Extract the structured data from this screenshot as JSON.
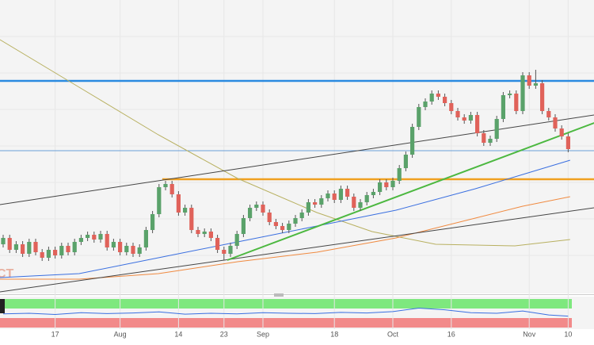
{
  "chart_data": {
    "type": "candlestick",
    "categories": [
      null,
      null,
      null,
      null,
      null,
      null,
      null,
      null,
      "17",
      null,
      null,
      null,
      null,
      null,
      null,
      null,
      null,
      null,
      "Aug",
      null,
      null,
      null,
      null,
      null,
      null,
      null,
      null,
      "14",
      null,
      null,
      null,
      null,
      null,
      null,
      "23",
      null,
      null,
      null,
      null,
      null,
      "Sep",
      null,
      null,
      null,
      null,
      null,
      null,
      null,
      null,
      null,
      null,
      "18",
      null,
      null,
      null,
      null,
      null,
      null,
      null,
      null,
      "Oct",
      null,
      null,
      null,
      null,
      null,
      null,
      null,
      null,
      "16",
      null,
      null,
      null,
      null,
      null,
      null,
      null,
      null,
      null,
      null,
      null,
      "Nov",
      null,
      null,
      null,
      null,
      null,
      "10"
    ],
    "open": [
      62,
      70,
      55,
      62,
      50,
      65,
      52,
      45,
      55,
      48,
      60,
      52,
      65,
      70,
      74,
      68,
      75,
      58,
      65,
      52,
      60,
      50,
      58,
      80,
      100,
      134,
      138,
      125,
      102,
      108,
      80,
      75,
      78,
      70,
      55,
      50,
      60,
      75,
      95,
      108,
      112,
      102,
      90,
      85,
      80,
      88,
      95,
      102,
      115,
      112,
      120,
      126,
      118,
      132,
      122,
      108,
      115,
      124,
      128,
      140,
      134,
      142,
      158,
      175,
      210,
      235,
      242,
      252,
      248,
      240,
      230,
      222,
      218,
      225,
      202,
      190,
      195,
      220,
      250,
      252,
      230,
      275,
      262,
      265,
      230,
      222,
      208,
      198
    ],
    "high": [
      74,
      74,
      66,
      66,
      69,
      69,
      56,
      59,
      59,
      64,
      64,
      69,
      74,
      78,
      78,
      79,
      79,
      69,
      69,
      64,
      64,
      62,
      84,
      104,
      138,
      142,
      142,
      129,
      112,
      112,
      84,
      82,
      82,
      74,
      59,
      64,
      79,
      99,
      112,
      116,
      116,
      106,
      94,
      89,
      92,
      99,
      106,
      119,
      119,
      124,
      130,
      130,
      136,
      136,
      126,
      119,
      128,
      132,
      144,
      144,
      146,
      162,
      179,
      214,
      239,
      246,
      256,
      256,
      252,
      244,
      234,
      226,
      229,
      229,
      206,
      199,
      224,
      254,
      256,
      256,
      279,
      279,
      282,
      269,
      234,
      226,
      212,
      202
    ],
    "low": [
      58,
      51,
      51,
      46,
      46,
      48,
      41,
      41,
      44,
      44,
      48,
      48,
      61,
      66,
      64,
      64,
      54,
      54,
      48,
      48,
      46,
      46,
      54,
      76,
      96,
      130,
      121,
      98,
      98,
      76,
      71,
      71,
      66,
      51,
      42,
      46,
      56,
      71,
      91,
      104,
      98,
      86,
      81,
      76,
      76,
      84,
      91,
      98,
      108,
      108,
      116,
      114,
      114,
      118,
      104,
      104,
      111,
      120,
      124,
      130,
      130,
      138,
      154,
      171,
      206,
      231,
      238,
      244,
      236,
      226,
      218,
      214,
      214,
      198,
      186,
      186,
      191,
      216,
      246,
      226,
      226,
      258,
      258,
      226,
      218,
      204,
      194,
      178
    ],
    "close": [
      70,
      55,
      62,
      50,
      65,
      52,
      45,
      55,
      48,
      60,
      52,
      65,
      70,
      74,
      68,
      75,
      58,
      65,
      52,
      60,
      50,
      58,
      80,
      100,
      134,
      138,
      125,
      102,
      108,
      80,
      75,
      78,
      70,
      55,
      50,
      60,
      75,
      95,
      108,
      112,
      102,
      90,
      85,
      80,
      88,
      95,
      102,
      115,
      112,
      120,
      126,
      118,
      132,
      122,
      108,
      115,
      124,
      128,
      140,
      134,
      142,
      158,
      175,
      210,
      235,
      242,
      252,
      248,
      240,
      230,
      222,
      218,
      225,
      202,
      190,
      195,
      220,
      250,
      252,
      230,
      275,
      262,
      265,
      230,
      222,
      208,
      198,
      182
    ],
    "up_color": "#5aa26a",
    "down_color": "#e0625a",
    "ylim": [
      0,
      370
    ],
    "levels": [
      {
        "value": 268,
        "color": "#2a8ae0",
        "from": -0.5
      },
      {
        "value": 180,
        "color": "#6a9fd8",
        "from": -0.5
      },
      {
        "value": 144,
        "color": "#f0a020",
        "from": 24.5
      }
    ],
    "lines": [
      {
        "color": "#444444",
        "x": [
          -0.5,
          91
        ],
        "values": [
          112,
          225
        ]
      },
      {
        "color": "#444444",
        "x": [
          -0.5,
          91
        ],
        "values": [
          2,
          108
        ]
      },
      {
        "color": "#4cb840",
        "x": [
          34.5,
          91
        ],
        "values": [
          42,
          215
        ]
      }
    ],
    "series": [
      {
        "color": "#b8b060",
        "x": [
          -0.5,
          11.7,
          23.9,
          36.1,
          48.3,
          56.8,
          66.6,
          78.8,
          87.3
        ],
        "values": [
          320,
          260,
          200,
          145,
          102,
          78,
          62,
          60,
          68
        ]
      },
      {
        "color": "#3a6fe0",
        "x": [
          -0.5,
          11.7,
          23.9,
          36.1,
          48.3,
          60.5,
          72.7,
          80,
          87.3
        ],
        "values": [
          20,
          25,
          45,
          65,
          85,
          105,
          132,
          150,
          168
        ]
      },
      {
        "color": "#f08a40",
        "x": [
          -0.5,
          11.7,
          23.9,
          36.1,
          48.3,
          60.5,
          72.7,
          80,
          87.3
        ],
        "values": [
          18,
          18,
          25,
          40,
          52,
          70,
          95,
          110,
          122
        ]
      }
    ],
    "indicator": {
      "color": "#3a6fe0",
      "ylim": [
        0,
        100
      ],
      "x": [
        0,
        4,
        8,
        12,
        16,
        20,
        24,
        28,
        32,
        36,
        40,
        44,
        48,
        52,
        56,
        60,
        64,
        68,
        72,
        76,
        80,
        84,
        87
      ],
      "values": [
        48,
        50,
        46,
        52,
        49,
        51,
        55,
        47,
        50,
        48,
        52,
        50,
        49,
        53,
        51,
        56,
        68,
        62,
        52,
        50,
        58,
        44,
        40
      ]
    },
    "watermark": "CT"
  }
}
